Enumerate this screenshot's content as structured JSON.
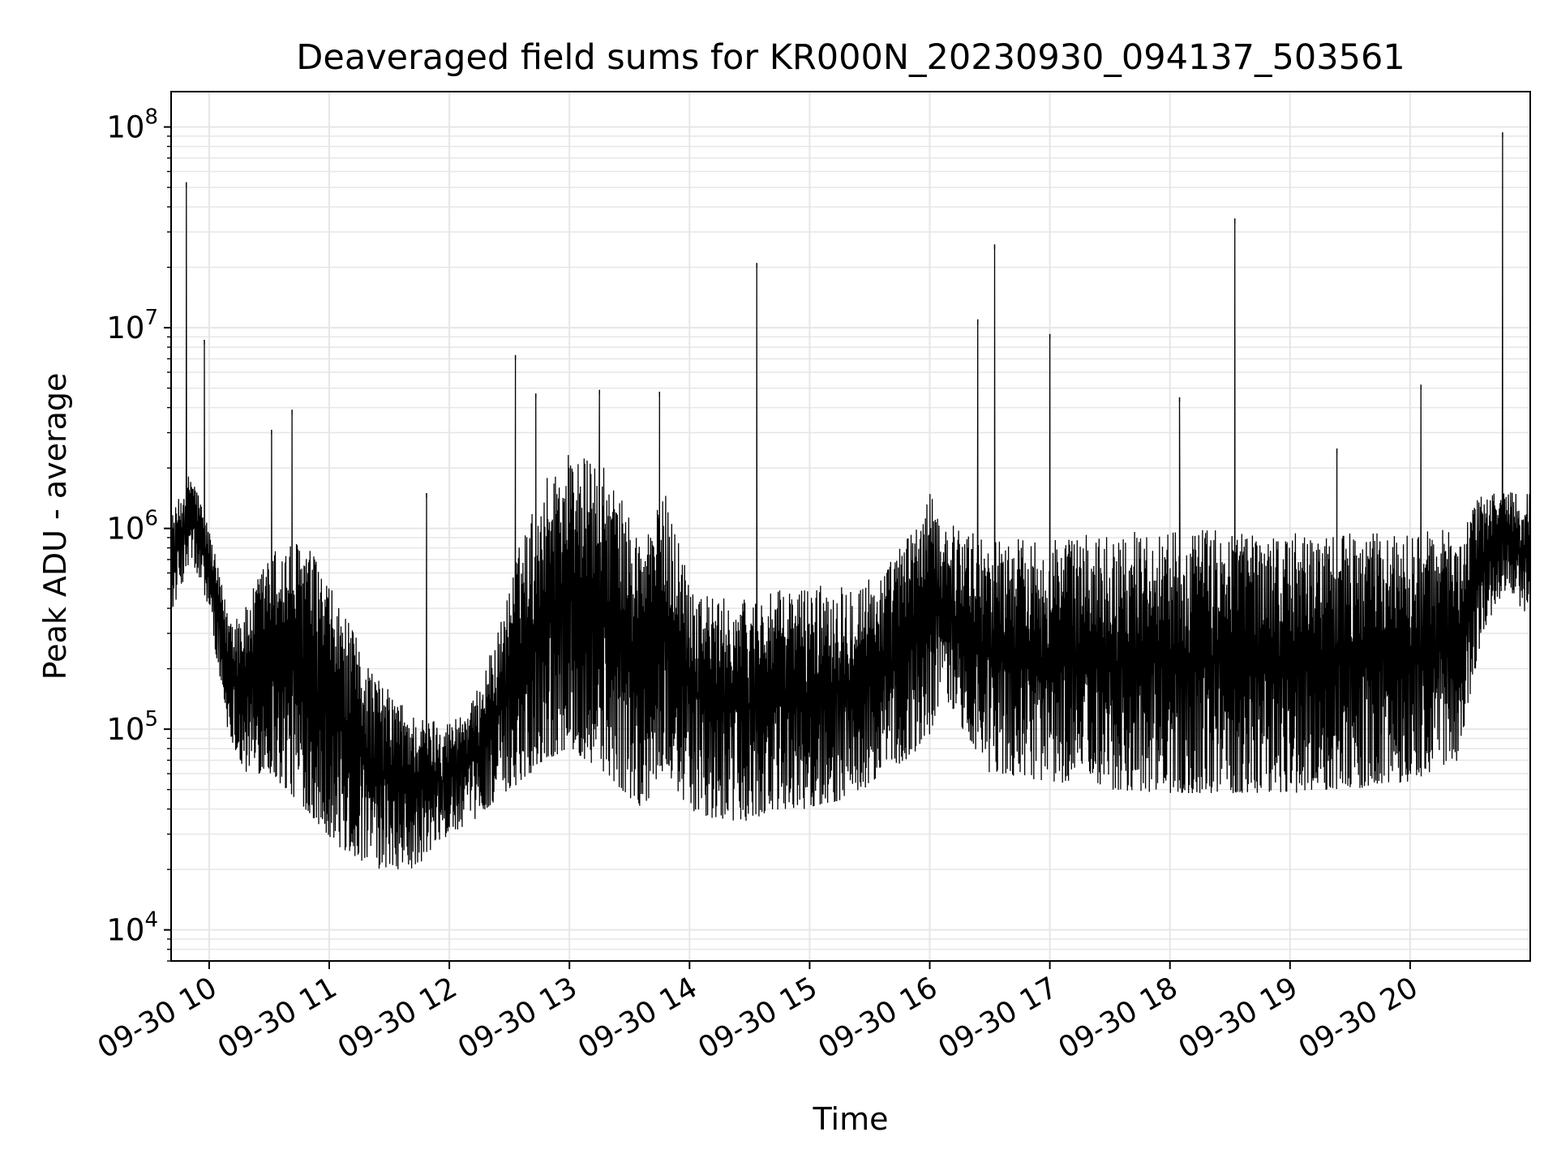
{
  "chart_data": {
    "type": "line",
    "title": "Deaveraged field sums for KR000N_20230930_094137_503561",
    "xlabel": "Time",
    "ylabel": "Peak ADU - average",
    "x_unit": "time (hours, 2023-09-30)",
    "xlim": [
      "09-30 09:41",
      "09-30 21:00"
    ],
    "ylim": [
      7000,
      150000000
    ],
    "yscale": "log",
    "grid": true,
    "line_color": "#000000",
    "grid_color": "#e6e6e6",
    "x_ticks": [
      {
        "value": 10,
        "label": "09-30 10"
      },
      {
        "value": 11,
        "label": "09-30 11"
      },
      {
        "value": 12,
        "label": "09-30 12"
      },
      {
        "value": 13,
        "label": "09-30 13"
      },
      {
        "value": 14,
        "label": "09-30 14"
      },
      {
        "value": 15,
        "label": "09-30 15"
      },
      {
        "value": 16,
        "label": "09-30 16"
      },
      {
        "value": 17,
        "label": "09-30 17"
      },
      {
        "value": 18,
        "label": "09-30 18"
      },
      {
        "value": 19,
        "label": "09-30 19"
      },
      {
        "value": 20,
        "label": "09-30 20"
      }
    ],
    "y_ticks": [
      {
        "value": 10000,
        "base": "10",
        "exp": "4"
      },
      {
        "value": 100000,
        "base": "10",
        "exp": "5"
      },
      {
        "value": 1000000,
        "base": "10",
        "exp": "6"
      },
      {
        "value": 10000000,
        "base": "10",
        "exp": "7"
      },
      {
        "value": 100000000,
        "base": "10",
        "exp": "8"
      }
    ],
    "envelope": {
      "hours": [
        9.7,
        9.85,
        10.0,
        10.15,
        10.3,
        10.5,
        10.8,
        11.1,
        11.4,
        11.7,
        12.0,
        12.2,
        12.4,
        12.6,
        12.8,
        13.0,
        13.3,
        13.6,
        13.8,
        14.0,
        14.2,
        14.5,
        14.8,
        15.0,
        15.3,
        15.6,
        15.8,
        16.0,
        16.1,
        16.5,
        17.0,
        17.5,
        18.0,
        18.5,
        19.0,
        19.5,
        20.0,
        20.4,
        20.6,
        20.8,
        21.0
      ],
      "low": [
        400000,
        700000,
        400000,
        100000,
        60000,
        60000,
        40000,
        25000,
        20000,
        20000,
        30000,
        35000,
        45000,
        55000,
        70000,
        80000,
        60000,
        40000,
        60000,
        40000,
        35000,
        35000,
        40000,
        40000,
        45000,
        55000,
        70000,
        90000,
        150000,
        60000,
        55000,
        50000,
        48000,
        48000,
        48000,
        50000,
        55000,
        70000,
        300000,
        500000,
        350000
      ],
      "high": [
        1200000,
        2000000,
        1000000,
        400000,
        400000,
        800000,
        900000,
        400000,
        180000,
        120000,
        110000,
        140000,
        300000,
        900000,
        1800000,
        2500000,
        2000000,
        900000,
        1500000,
        600000,
        450000,
        450000,
        500000,
        520000,
        550000,
        600000,
        900000,
        1500000,
        1100000,
        900000,
        900000,
        950000,
        1000000,
        1000000,
        950000,
        950000,
        950000,
        1000000,
        1500000,
        1600000,
        1500000
      ]
    },
    "spikes": [
      {
        "x": 9.81,
        "y": 53000000
      },
      {
        "x": 9.96,
        "y": 8700000
      },
      {
        "x": 10.52,
        "y": 3100000
      },
      {
        "x": 10.69,
        "y": 3900000
      },
      {
        "x": 11.81,
        "y": 1500000
      },
      {
        "x": 12.55,
        "y": 7300000
      },
      {
        "x": 12.72,
        "y": 4700000
      },
      {
        "x": 13.25,
        "y": 4900000
      },
      {
        "x": 13.75,
        "y": 4800000
      },
      {
        "x": 14.56,
        "y": 21000000
      },
      {
        "x": 16.4,
        "y": 11000000
      },
      {
        "x": 16.54,
        "y": 26000000
      },
      {
        "x": 17.0,
        "y": 9300000
      },
      {
        "x": 18.08,
        "y": 4500000
      },
      {
        "x": 18.54,
        "y": 35000000
      },
      {
        "x": 19.39,
        "y": 2500000
      },
      {
        "x": 20.09,
        "y": 5200000
      },
      {
        "x": 20.77,
        "y": 94000000
      }
    ]
  }
}
